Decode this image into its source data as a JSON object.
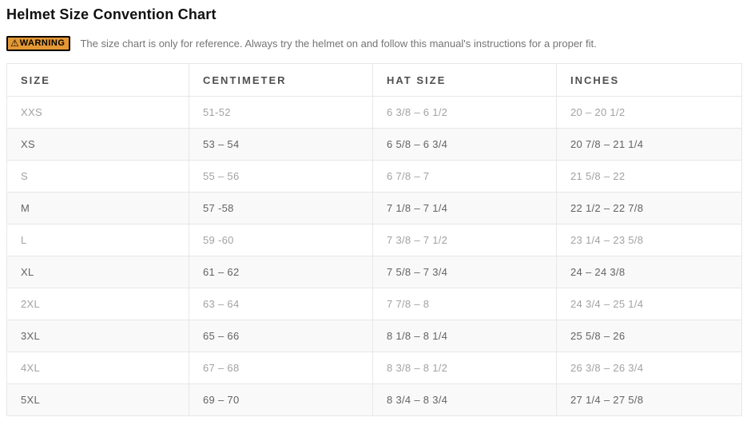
{
  "page": {
    "title": "Helmet Size Convention Chart"
  },
  "warning": {
    "icon": "warning-triangle",
    "badge_label": "WARNING",
    "text": "The size chart is only for reference. Always try the helmet on and follow this manual's instructions for a proper fit.",
    "badge_color": "#e49834",
    "badge_border_color": "#000000"
  },
  "table": {
    "headers": [
      "SIZE",
      "CENTIMETER",
      "HAT SIZE",
      "INCHES"
    ],
    "rows": [
      {
        "size": "XXS",
        "centimeter": "51-52",
        "hat_size": "6 3/8 – 6 1/2",
        "inches": "20 – 20 1/2"
      },
      {
        "size": "XS",
        "centimeter": "53 – 54",
        "hat_size": "6 5/8 – 6 3/4",
        "inches": "20 7/8 – 21 1/4"
      },
      {
        "size": "S",
        "centimeter": "55 – 56",
        "hat_size": "6 7/8 – 7",
        "inches": "21 5/8 – 22"
      },
      {
        "size": "M",
        "centimeter": "57 -58",
        "hat_size": "7 1/8 – 7 1/4",
        "inches": "22 1/2 – 22 7/8"
      },
      {
        "size": "L",
        "centimeter": "59 -60",
        "hat_size": "7 3/8 – 7 1/2",
        "inches": "23 1/4 – 23 5/8"
      },
      {
        "size": "XL",
        "centimeter": "61 – 62",
        "hat_size": "7 5/8 – 7 3/4",
        "inches": "24 – 24 3/8"
      },
      {
        "size": "2XL",
        "centimeter": "63 – 64",
        "hat_size": "7 7/8 – 8",
        "inches": "24 3/4 – 25 1/4"
      },
      {
        "size": "3XL",
        "centimeter": "65 – 66",
        "hat_size": "8 1/8 – 8 1/4",
        "inches": "25 5/8 – 26"
      },
      {
        "size": "4XL",
        "centimeter": "67 – 68",
        "hat_size": "8 3/8 – 8 1/2",
        "inches": "26 3/8 – 26 3/4"
      },
      {
        "size": "5XL",
        "centimeter": "69 – 70",
        "hat_size": "8 3/4 – 8 3/4",
        "inches": "27 1/4 – 27 5/8"
      }
    ]
  }
}
